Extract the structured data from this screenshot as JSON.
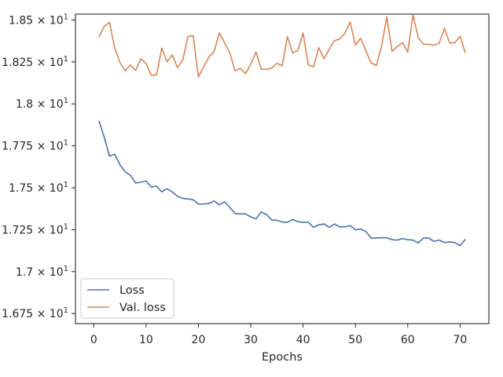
{
  "chart_data": {
    "type": "line",
    "xlabel": "Epochs",
    "ylabel": "",
    "xlim": [
      -3.5,
      75.5
    ],
    "ylim": [
      16.69,
      18.535
    ],
    "grid": false,
    "legend_placement": "lower-left",
    "x_ticks": [
      0,
      10,
      20,
      30,
      40,
      50,
      60,
      70
    ],
    "x_tick_labels": [
      "0",
      "10",
      "20",
      "30",
      "40",
      "50",
      "60",
      "70"
    ],
    "y_ticks": [
      16.75,
      17.0,
      17.25,
      17.5,
      17.75,
      18.0,
      18.25,
      18.5
    ],
    "y_tick_labels": [
      {
        "mantissa": "1.675 × 10",
        "exp": "1"
      },
      {
        "mantissa": "1.7 × 10",
        "exp": "1"
      },
      {
        "mantissa": "1.725 × 10",
        "exp": "1"
      },
      {
        "mantissa": "1.75 × 10",
        "exp": "1"
      },
      {
        "mantissa": "1.775 × 10",
        "exp": "1"
      },
      {
        "mantissa": "1.8 × 10",
        "exp": "1"
      },
      {
        "mantissa": "1.825 × 10",
        "exp": "1"
      },
      {
        "mantissa": "1.85 × 10",
        "exp": "1"
      }
    ],
    "series": [
      {
        "name": "Loss",
        "color": "#4c72b0",
        "x": [
          1,
          2,
          3,
          4,
          5,
          6,
          7,
          8,
          9,
          10,
          11,
          12,
          13,
          14,
          15,
          16,
          17,
          18,
          19,
          20,
          21,
          22,
          23,
          24,
          25,
          26,
          27,
          28,
          29,
          30,
          31,
          32,
          33,
          34,
          35,
          36,
          37,
          38,
          39,
          40,
          41,
          42,
          43,
          44,
          45,
          46,
          47,
          48,
          49,
          50,
          51,
          52,
          53,
          54,
          55,
          56,
          57,
          58,
          59,
          60,
          61,
          62,
          63,
          64,
          65,
          66,
          67,
          68,
          69,
          70,
          71
        ],
        "values": [
          17.899,
          17.801,
          17.688,
          17.7,
          17.637,
          17.595,
          17.574,
          17.528,
          17.533,
          17.54,
          17.503,
          17.51,
          17.475,
          17.494,
          17.475,
          17.449,
          17.437,
          17.433,
          17.428,
          17.403,
          17.403,
          17.406,
          17.421,
          17.398,
          17.417,
          17.383,
          17.346,
          17.344,
          17.344,
          17.326,
          17.314,
          17.355,
          17.341,
          17.308,
          17.306,
          17.296,
          17.294,
          17.311,
          17.298,
          17.294,
          17.294,
          17.264,
          17.279,
          17.284,
          17.264,
          17.284,
          17.267,
          17.267,
          17.274,
          17.249,
          17.254,
          17.239,
          17.2,
          17.2,
          17.202,
          17.202,
          17.19,
          17.188,
          17.197,
          17.19,
          17.188,
          17.171,
          17.2,
          17.2,
          17.18,
          17.188,
          17.173,
          17.178,
          17.173,
          17.154,
          17.193
        ]
      },
      {
        "name": "Val. loss",
        "color": "#dd8452",
        "x": [
          1,
          2,
          3,
          4,
          5,
          6,
          7,
          8,
          9,
          10,
          11,
          12,
          13,
          14,
          15,
          16,
          17,
          18,
          19,
          20,
          21,
          22,
          23,
          24,
          25,
          26,
          27,
          28,
          29,
          30,
          31,
          32,
          33,
          34,
          35,
          36,
          37,
          38,
          39,
          40,
          41,
          42,
          43,
          44,
          45,
          46,
          47,
          48,
          49,
          50,
          51,
          52,
          53,
          54,
          55,
          56,
          57,
          58,
          59,
          60,
          61,
          62,
          63,
          64,
          65,
          66,
          67,
          68,
          69,
          70,
          71
        ],
        "values": [
          18.398,
          18.462,
          18.486,
          18.333,
          18.247,
          18.197,
          18.232,
          18.199,
          18.269,
          18.239,
          18.17,
          18.173,
          18.333,
          18.251,
          18.291,
          18.217,
          18.262,
          18.401,
          18.406,
          18.161,
          18.222,
          18.279,
          18.313,
          18.423,
          18.364,
          18.304,
          18.197,
          18.212,
          18.18,
          18.237,
          18.309,
          18.207,
          18.205,
          18.214,
          18.242,
          18.227,
          18.401,
          18.304,
          18.318,
          18.423,
          18.232,
          18.222,
          18.335,
          18.269,
          18.326,
          18.377,
          18.387,
          18.421,
          18.487,
          18.35,
          18.392,
          18.316,
          18.244,
          18.229,
          18.345,
          18.518,
          18.313,
          18.343,
          18.365,
          18.309,
          18.53,
          18.396,
          18.355,
          18.355,
          18.35,
          18.36,
          18.45,
          18.364,
          18.364,
          18.404,
          18.304
        ]
      }
    ]
  }
}
